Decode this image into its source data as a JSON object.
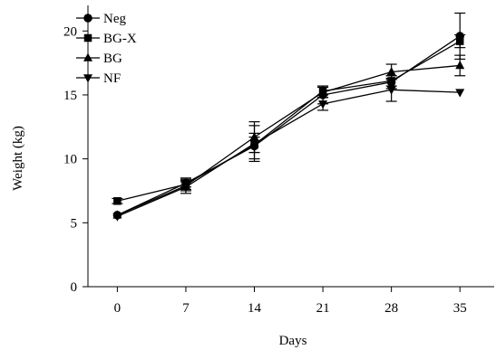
{
  "chart_data": {
    "type": "line",
    "title": "",
    "xlabel": "Days",
    "ylabel": "Weight (kg)",
    "x": [
      0,
      7,
      14,
      21,
      28,
      35
    ],
    "x_tick_labels": [
      "0",
      "7",
      "14",
      "21",
      "28",
      "35"
    ],
    "ylim": [
      0,
      22
    ],
    "y_ticks": [
      0,
      5,
      10,
      15,
      20
    ],
    "y_tick_labels": [
      "0",
      "5",
      "10",
      "15",
      "20"
    ],
    "grid": false,
    "legend_position": "top-left",
    "series": [
      {
        "name": "Neg",
        "marker": "circle",
        "values": [
          5.6,
          8.1,
          11.0,
          15.0,
          16.0,
          19.6
        ],
        "errors": [
          0,
          0.3,
          1.0,
          0.7,
          0.5,
          1.8
        ]
      },
      {
        "name": "BG-X",
        "marker": "square",
        "values": [
          6.7,
          8.0,
          11.1,
          15.3,
          16.1,
          19.2
        ],
        "errors": [
          0.2,
          0.5,
          0.6,
          0.3,
          0.4,
          0.5
        ]
      },
      {
        "name": "BG",
        "marker": "triangle-up",
        "values": [
          5.6,
          7.9,
          11.7,
          15.2,
          16.8,
          17.3
        ],
        "errors": [
          0,
          0.3,
          1.2,
          0.4,
          0.6,
          0.8
        ]
      },
      {
        "name": "NF",
        "marker": "triangle-down",
        "values": [
          5.5,
          7.8,
          11.2,
          14.3,
          15.4,
          15.2
        ],
        "errors": [
          0,
          0.5,
          1.4,
          0.5,
          0.9,
          0
        ]
      }
    ]
  }
}
